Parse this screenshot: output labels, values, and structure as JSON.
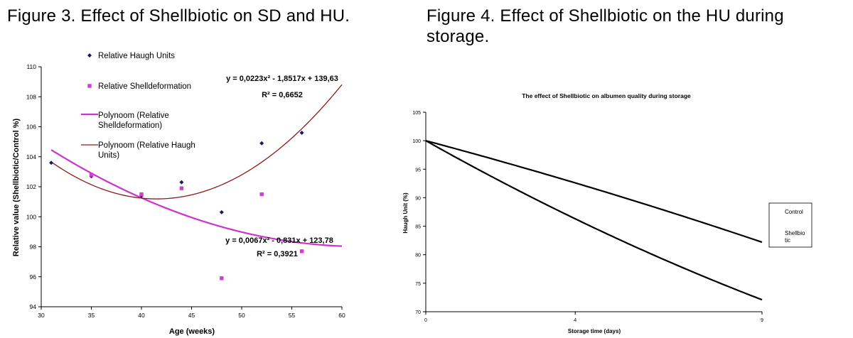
{
  "figures": {
    "fig3_title": "Figure 3. Effect of Shellbiotic on SD and HU.",
    "fig4_title_line1": "Figure 4. Effect of Shellbiotic on the HU during",
    "fig4_title_line2": "storage."
  },
  "colors": {
    "haugh_series": "#1a1a5e",
    "shell_series": "#d43cd4",
    "shell_curve": "#cc33cc",
    "haugh_curve": "#8b1a1a",
    "black": "#000000"
  },
  "chart_data": [
    {
      "type": "scatter",
      "title": "",
      "xlabel": "Age (weeks)",
      "ylabel": "Relative value (Shellbiotic/Control %)",
      "xlim": [
        30,
        60
      ],
      "ylim": [
        94,
        110
      ],
      "x_ticks": [
        "30",
        "35",
        "40",
        "45",
        "50",
        "55",
        "60"
      ],
      "y_ticks": [
        "94",
        "96",
        "98",
        "100",
        "102",
        "104",
        "106",
        "108",
        "110"
      ],
      "legend_position": "top-left",
      "series": [
        {
          "name": "Relative Haugh Units",
          "marker": "diamond",
          "points": [
            [
              31,
              103.6
            ],
            [
              35,
              102.7
            ],
            [
              40,
              101.4
            ],
            [
              44,
              102.3
            ],
            [
              48,
              100.3
            ],
            [
              52,
              104.9
            ],
            [
              56,
              105.6
            ]
          ]
        },
        {
          "name": "Relative Shelldeformation",
          "marker": "square",
          "points": [
            [
              35,
              102.8
            ],
            [
              40,
              101.5
            ],
            [
              44,
              101.9
            ],
            [
              48,
              95.9
            ],
            [
              52,
              101.5
            ],
            [
              56,
              97.7
            ]
          ]
        }
      ],
      "trendlines": [
        {
          "name": "Polynoom (Relative Shelldeformation)",
          "legend_line1": "Polynoom (Relative",
          "legend_line2": "Shelldeformation)",
          "a": 0.0067,
          "b": -0.831,
          "c": 123.78,
          "x_range": [
            31,
            60
          ],
          "equation": "y = 0,0067x² - 0,831x + 123,78",
          "r2": "R² = 0,3921"
        },
        {
          "name": "Polynoom (Relative Haugh Units)",
          "legend_line1": "Polynoom (Relative Haugh",
          "legend_line2": "Units)",
          "a": 0.0223,
          "b": -1.8517,
          "c": 139.63,
          "x_range": [
            31,
            60
          ],
          "equation": "y = 0,0223x² - 1,8517x + 139,63",
          "r2": "R² = 0,6652"
        }
      ]
    },
    {
      "type": "line",
      "title": "The effect of Shellbiotic on albumen quality during storage",
      "xlabel": "Storage time (days)",
      "ylabel": "Haugh Unit (%)",
      "categories": [
        "0",
        "4",
        "9"
      ],
      "y_ticks": [
        "70",
        "75",
        "80",
        "85",
        "90",
        "95",
        "100",
        "105"
      ],
      "ylim": [
        70,
        105
      ],
      "legend_position": "right",
      "series": [
        {
          "name": "Control",
          "legend_line1": "Control",
          "legend_line2": "",
          "values": [
            100,
            92.6,
            82.2
          ]
        },
        {
          "name": "Shellbiotic",
          "legend_line1": "Shellbio",
          "legend_line2": "tic",
          "values": [
            100,
            86.3,
            72.1
          ]
        }
      ]
    }
  ]
}
